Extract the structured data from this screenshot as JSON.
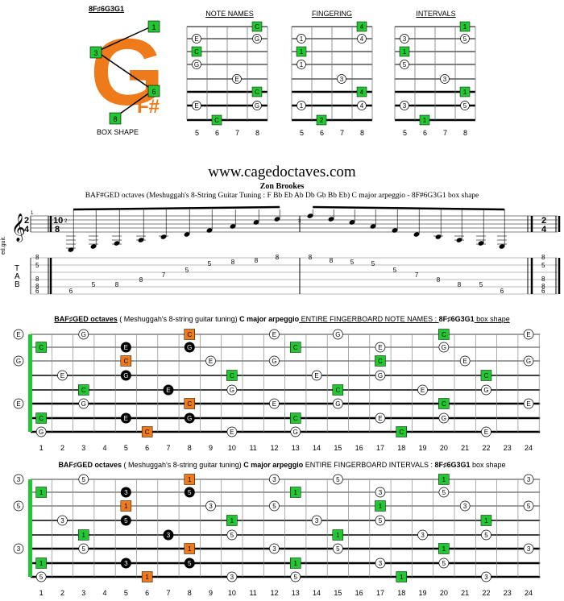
{
  "box_shape": {
    "title": "8F♯6G3G1",
    "caption": "BOX SHAPE",
    "big_letter": "G",
    "sub_letter": "F#",
    "markers": [
      "1",
      "3",
      "6",
      "8"
    ]
  },
  "panels": {
    "note_names": {
      "title": "NOTE NAMES",
      "frets": [
        "5",
        "6",
        "7",
        "8"
      ]
    },
    "fingering": {
      "title": "FINGERING",
      "frets": [
        "5",
        "6",
        "7",
        "8"
      ]
    },
    "intervals": {
      "title": "INTERVALS",
      "frets": [
        "5",
        "6",
        "7",
        "8"
      ]
    }
  },
  "site": "www.cagedoctaves.com",
  "author": "Zon Brookes",
  "description": "BAF#GED octaves (Meshuggah's 8-String Guitar Tuning : F Bb Eb Ab Db Gb Bb Eb) C major arpeggio - 8F#6G3G1 box shape",
  "notation": {
    "time_sig": [
      "2",
      "4"
    ],
    "time_sig_mid": [
      "10",
      "8"
    ],
    "instrument": "ed.guit.",
    "tab_label": [
      "T",
      "A",
      "B"
    ],
    "tuning_labels": [
      "8",
      "5",
      "8",
      "8",
      "6"
    ],
    "bar1_frets": [
      "6",
      "5",
      "8",
      "8",
      "7",
      "5",
      "5",
      "8",
      "8",
      "8"
    ],
    "bar2_frets": [
      "8",
      "8",
      "5",
      "5",
      "5",
      "7",
      "8",
      "8",
      "5",
      "6"
    ],
    "end_labels": [
      "8",
      "5",
      "8",
      "8",
      "6"
    ],
    "measure_numbers": [
      "1",
      "2",
      "3"
    ]
  },
  "fretboard_notes": {
    "heading": {
      "a": "BAF♯GED octaves",
      "b": " ( Meshuggah's 8-string guitar tuning) ",
      "c": "C major arpeggio",
      "d": " ENTIRE FINGERBOARD NOTE NAMES : ",
      "e": "8F♯6G3G1",
      "f": " box shape"
    }
  },
  "fretboard_intervals": {
    "heading": {
      "a": "BAF♯GED octaves",
      "b": " ( Meshuggah's 8-string guitar tuning) ",
      "c": "C major arpeggio",
      "d": " ENTIRE FINGERBOARD INTERVALS : ",
      "e": "8F♯6G3G1",
      "f": " box shape"
    }
  },
  "fret_numbers": [
    "1",
    "2",
    "3",
    "4",
    "5",
    "6",
    "7",
    "8",
    "9",
    "10",
    "11",
    "12",
    "13",
    "14",
    "15",
    "16",
    "17",
    "18",
    "19",
    "20",
    "21",
    "22",
    "23",
    "24"
  ],
  "colors": {
    "green": "#22c832",
    "orange": "#ee7a1a",
    "black": "#000000"
  }
}
